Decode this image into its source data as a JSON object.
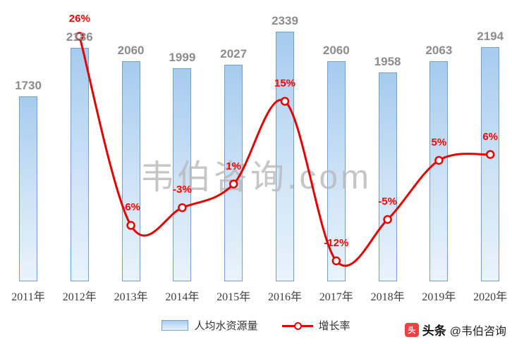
{
  "watermark": "韦伯咨询.com",
  "branding": {
    "icon_glyph": "头",
    "platform": "头条",
    "account": "@韦伯咨询"
  },
  "legend": {
    "bar_label": "人均水资源量",
    "line_label": "增长率"
  },
  "colors": {
    "bar_fill_top": "#a6cbee",
    "bar_fill_bottom": "#e9f3fc",
    "bar_border": "#6fa3d8",
    "line": "#e60000",
    "value_label": "#8c8c8c",
    "pct_label": "#fe0000",
    "axis_label": "#3f3f3f"
  },
  "chart_data": {
    "type": "bar",
    "subtype": "bar+line-combo",
    "categories": [
      "2011年",
      "2012年",
      "2013年",
      "2014年",
      "2015年",
      "2016年",
      "2017年",
      "2018年",
      "2019年",
      "2020年"
    ],
    "series": [
      {
        "name": "人均水资源量",
        "type": "bar",
        "values": [
          1730,
          2186,
          2060,
          1999,
          2027,
          2339,
          2060,
          1958,
          2063,
          2194
        ]
      },
      {
        "name": "增长率",
        "type": "line",
        "unit": "%",
        "values": [
          null,
          26,
          -6,
          -3,
          1,
          15,
          -12,
          -5,
          5,
          6
        ]
      }
    ],
    "bar_value_labels": [
      "1730",
      "2186",
      "2060",
      "1999",
      "2027",
      "2339",
      "2060",
      "1958",
      "2063",
      "2194"
    ],
    "pct_labels": [
      null,
      "26%",
      "-6%",
      "-3%",
      "1%",
      "15%",
      "-12%",
      "-5%",
      "5%",
      "6%"
    ],
    "title": "",
    "xlabel": "",
    "ylabel": "",
    "primary_axis_implied_range": [
      0,
      2500
    ],
    "secondary_axis_implied_range": [
      -25,
      30
    ],
    "grid": false,
    "legend_position": "bottom"
  }
}
